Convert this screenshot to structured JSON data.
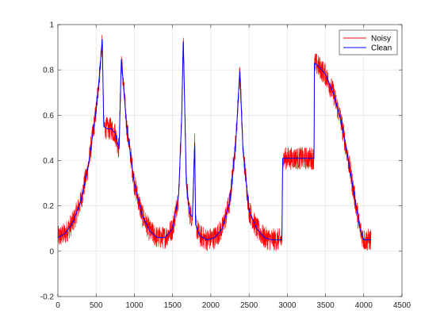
{
  "chart_data": {
    "type": "line",
    "title": "",
    "xlabel": "",
    "ylabel": "",
    "xlim": [
      0,
      4500
    ],
    "ylim": [
      -0.2,
      1
    ],
    "xticks": [
      0,
      500,
      1000,
      1500,
      2000,
      2500,
      3000,
      3500,
      4000,
      4500
    ],
    "xtick_labels": [
      "0",
      "500",
      "1000",
      "1500",
      "2000",
      "2500",
      "3000",
      "3500",
      "4000",
      "4500"
    ],
    "yticks": [
      -0.2,
      0,
      0.2,
      0.4,
      0.6,
      0.8,
      1
    ],
    "ytick_labels": [
      "-0.2",
      "0",
      "0.2",
      "0.4",
      "0.6",
      "0.8",
      "1"
    ],
    "grid": true,
    "legend_position": "top-right",
    "n_samples": 4096,
    "x_start": 1,
    "series": [
      {
        "name": "Noisy",
        "color": "#ff0000",
        "noise_amplitude": 0.05,
        "description_points": [
          [
            1,
            0.06
          ],
          [
            100,
            0.08
          ],
          [
            200,
            0.13
          ],
          [
            300,
            0.22
          ],
          [
            400,
            0.38
          ],
          [
            500,
            0.62
          ],
          [
            550,
            0.8
          ],
          [
            580,
            0.94
          ],
          [
            600,
            0.55
          ],
          [
            650,
            0.54
          ],
          [
            700,
            0.54
          ],
          [
            750,
            0.52
          ],
          [
            800,
            0.45
          ],
          [
            830,
            0.85
          ],
          [
            900,
            0.55
          ],
          [
            1000,
            0.3
          ],
          [
            1100,
            0.16
          ],
          [
            1200,
            0.09
          ],
          [
            1300,
            0.06
          ],
          [
            1400,
            0.06
          ],
          [
            1500,
            0.1
          ],
          [
            1580,
            0.25
          ],
          [
            1620,
            0.6
          ],
          [
            1640,
            0.94
          ],
          [
            1680,
            0.3
          ],
          [
            1720,
            0.17
          ],
          [
            1760,
            0.15
          ],
          [
            1790,
            0.49
          ],
          [
            1800,
            0.12
          ],
          [
            1850,
            0.07
          ],
          [
            1950,
            0.05
          ],
          [
            2050,
            0.06
          ],
          [
            2150,
            0.1
          ],
          [
            2250,
            0.22
          ],
          [
            2330,
            0.5
          ],
          [
            2380,
            0.8
          ],
          [
            2420,
            0.45
          ],
          [
            2500,
            0.18
          ],
          [
            2600,
            0.1
          ],
          [
            2700,
            0.06
          ],
          [
            2800,
            0.05
          ],
          [
            2900,
            0.05
          ],
          [
            2930,
            0.05
          ],
          [
            2940,
            0.41
          ],
          [
            3000,
            0.41
          ],
          [
            3100,
            0.41
          ],
          [
            3200,
            0.41
          ],
          [
            3300,
            0.41
          ],
          [
            3350,
            0.41
          ],
          [
            3355,
            0.83
          ],
          [
            3400,
            0.82
          ],
          [
            3500,
            0.78
          ],
          [
            3600,
            0.7
          ],
          [
            3700,
            0.58
          ],
          [
            3800,
            0.4
          ],
          [
            3900,
            0.2
          ],
          [
            3950,
            0.1
          ],
          [
            4000,
            0.05
          ],
          [
            4096,
            0.05
          ]
        ]
      },
      {
        "name": "Clean",
        "color": "#0000ff",
        "description_points": [
          [
            1,
            0.06
          ],
          [
            100,
            0.08
          ],
          [
            200,
            0.13
          ],
          [
            300,
            0.22
          ],
          [
            400,
            0.38
          ],
          [
            500,
            0.62
          ],
          [
            550,
            0.8
          ],
          [
            580,
            0.94
          ],
          [
            600,
            0.55
          ],
          [
            650,
            0.54
          ],
          [
            700,
            0.54
          ],
          [
            750,
            0.52
          ],
          [
            800,
            0.45
          ],
          [
            830,
            0.85
          ],
          [
            900,
            0.55
          ],
          [
            1000,
            0.3
          ],
          [
            1100,
            0.16
          ],
          [
            1200,
            0.09
          ],
          [
            1300,
            0.06
          ],
          [
            1400,
            0.06
          ],
          [
            1500,
            0.1
          ],
          [
            1580,
            0.25
          ],
          [
            1620,
            0.6
          ],
          [
            1640,
            0.94
          ],
          [
            1680,
            0.3
          ],
          [
            1720,
            0.17
          ],
          [
            1760,
            0.15
          ],
          [
            1790,
            0.49
          ],
          [
            1800,
            0.12
          ],
          [
            1850,
            0.07
          ],
          [
            1950,
            0.05
          ],
          [
            2050,
            0.06
          ],
          [
            2150,
            0.1
          ],
          [
            2250,
            0.22
          ],
          [
            2330,
            0.5
          ],
          [
            2380,
            0.8
          ],
          [
            2420,
            0.45
          ],
          [
            2500,
            0.18
          ],
          [
            2600,
            0.1
          ],
          [
            2700,
            0.06
          ],
          [
            2800,
            0.05
          ],
          [
            2900,
            0.05
          ],
          [
            2930,
            0.05
          ],
          [
            2940,
            0.41
          ],
          [
            3000,
            0.41
          ],
          [
            3100,
            0.41
          ],
          [
            3200,
            0.41
          ],
          [
            3300,
            0.41
          ],
          [
            3350,
            0.41
          ],
          [
            3355,
            0.83
          ],
          [
            3400,
            0.82
          ],
          [
            3500,
            0.78
          ],
          [
            3600,
            0.7
          ],
          [
            3700,
            0.58
          ],
          [
            3800,
            0.4
          ],
          [
            3900,
            0.2
          ],
          [
            3950,
            0.1
          ],
          [
            4000,
            0.05
          ],
          [
            4096,
            0.05
          ]
        ]
      }
    ]
  }
}
